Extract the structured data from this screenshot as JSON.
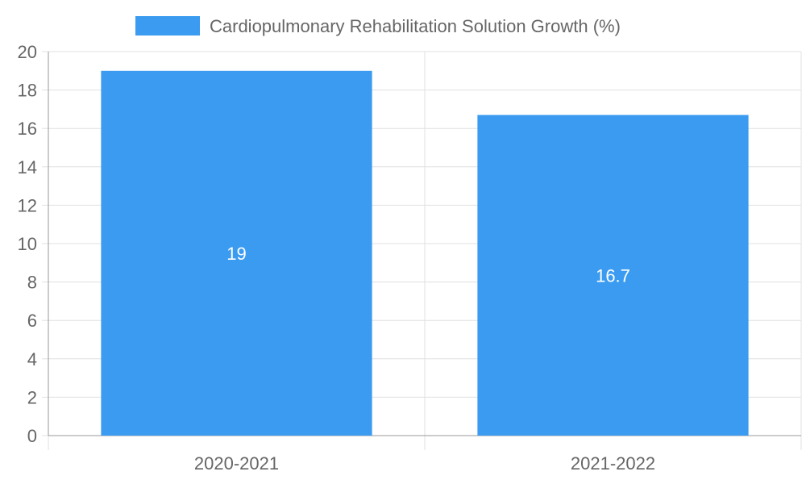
{
  "chart_data": {
    "type": "bar",
    "categories": [
      "2020-2021",
      "2021-2022"
    ],
    "series": [
      {
        "name": "Cardiopulmonary Rehabilitation Solution Growth (%)",
        "values": [
          19,
          16.7
        ],
        "color": "#3a9bf0"
      }
    ],
    "data_labels": [
      "19",
      "16.7"
    ],
    "ylim": [
      0,
      20
    ],
    "y_ticks": [
      0,
      2,
      4,
      6,
      8,
      10,
      12,
      14,
      16,
      18,
      20
    ],
    "grid": true,
    "legend_position": "top-center",
    "title": "",
    "xlabel": "",
    "ylabel": ""
  },
  "colors": {
    "bar": "#3a9bf0",
    "grid": "#e0e0e0",
    "axis": "#999999",
    "tick_text": "#666666",
    "data_label_text": "#ffffff"
  }
}
